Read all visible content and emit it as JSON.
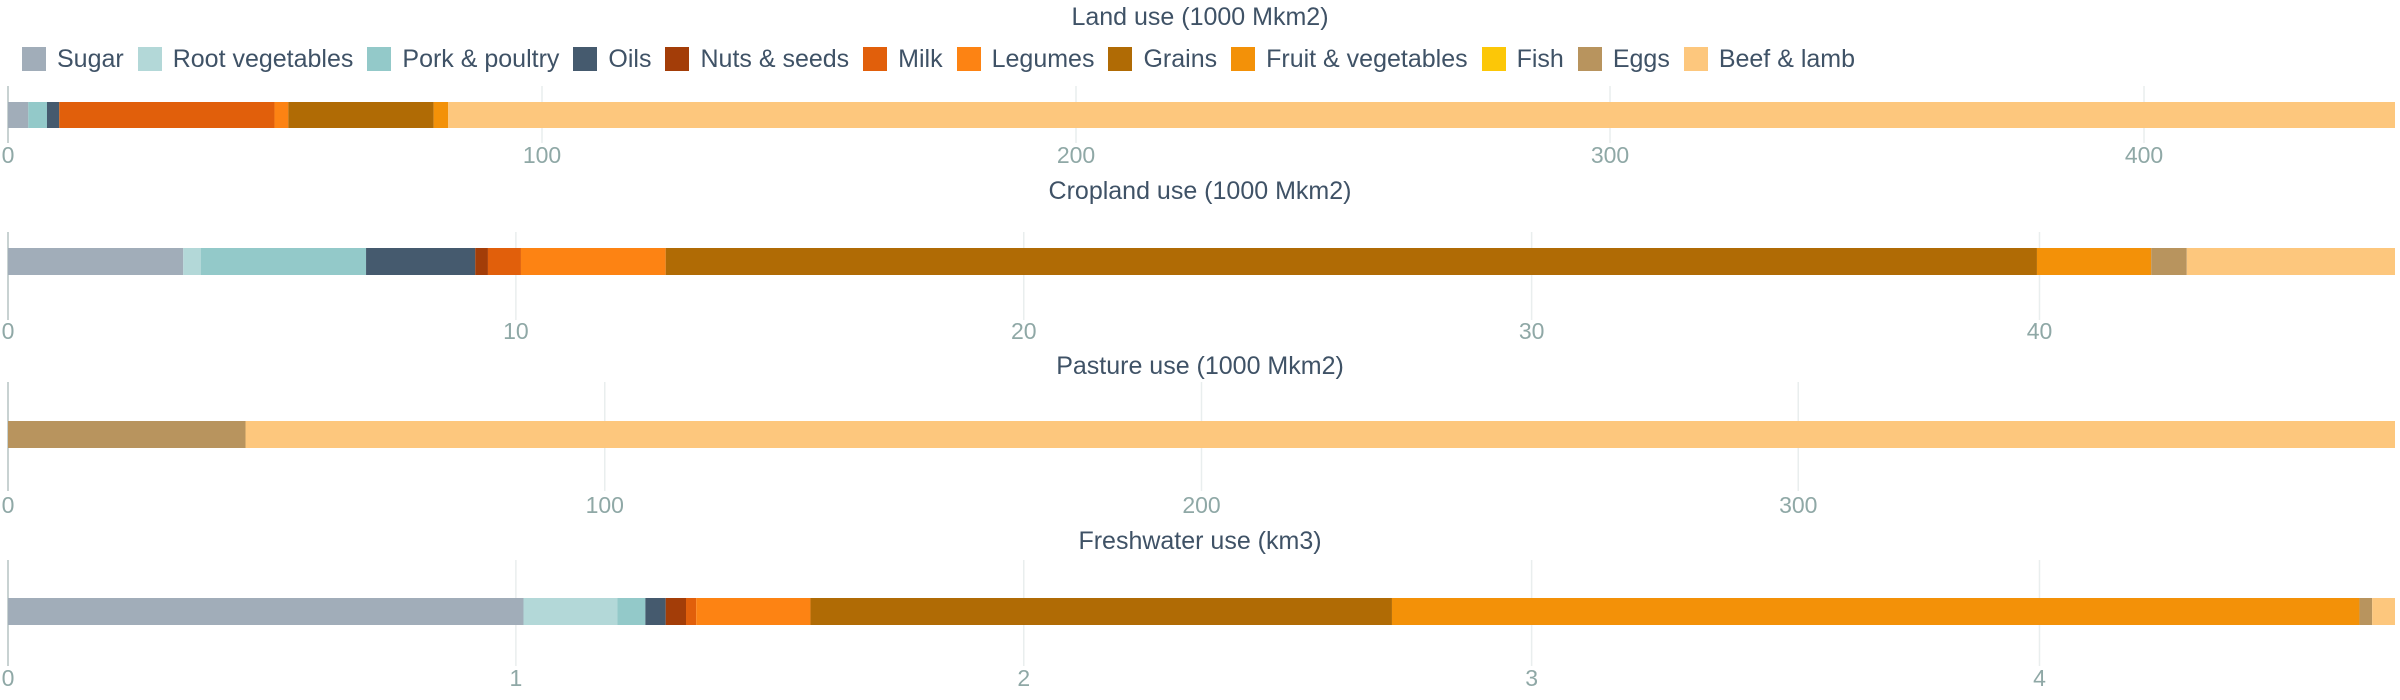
{
  "legend": [
    {
      "label": "Sugar",
      "color": "#a1adb9"
    },
    {
      "label": "Root vegetables",
      "color": "#b3d8d8"
    },
    {
      "label": "Pork & poultry",
      "color": "#93c9c9"
    },
    {
      "label": "Oils",
      "color": "#455a6e"
    },
    {
      "label": "Nuts & seeds",
      "color": "#a33d08"
    },
    {
      "label": "Milk",
      "color": "#e15f0b"
    },
    {
      "label": "Legumes",
      "color": "#fd8313"
    },
    {
      "label": "Grains",
      "color": "#b06b05"
    },
    {
      "label": "Fruit & vegetables",
      "color": "#f39108"
    },
    {
      "label": "Fish",
      "color": "#fcc707"
    },
    {
      "label": "Eggs",
      "color": "#b8945e"
    },
    {
      "label": "Beef & lamb",
      "color": "#fdc77d"
    }
  ],
  "chart_data": [
    {
      "type": "bar",
      "orientation": "horizontal",
      "stacked": true,
      "title": "Land use (1000 Mkm2)",
      "xlim": [
        0,
        447
      ],
      "ticks": [
        0,
        100,
        200,
        300,
        400
      ],
      "segments": [
        {
          "name": "Sugar",
          "value": 3.8
        },
        {
          "name": "Pork & poultry",
          "value": 3.5
        },
        {
          "name": "Oils",
          "value": 2.3
        },
        {
          "name": "Milk",
          "value": 40.3
        },
        {
          "name": "Legumes",
          "value": 2.6
        },
        {
          "name": "Grains",
          "value": 27.2
        },
        {
          "name": "Fruit & vegetables",
          "value": 2.7
        },
        {
          "name": "Beef & lamb",
          "value": 364.6
        }
      ]
    },
    {
      "type": "bar",
      "orientation": "horizontal",
      "stacked": true,
      "title": "Cropland use (1000 Mkm2)",
      "xlim": [
        0,
        47
      ],
      "ticks": [
        0,
        10,
        20,
        30,
        40
      ],
      "segments": [
        {
          "name": "Sugar",
          "value": 3.45
        },
        {
          "name": "Root vegetables",
          "value": 0.35
        },
        {
          "name": "Pork & poultry",
          "value": 3.25
        },
        {
          "name": "Oils",
          "value": 2.15
        },
        {
          "name": "Nuts & seeds",
          "value": 0.25
        },
        {
          "name": "Milk",
          "value": 0.65
        },
        {
          "name": "Legumes",
          "value": 2.85
        },
        {
          "name": "Grains",
          "value": 27.0
        },
        {
          "name": "Fruit & vegetables",
          "value": 2.25
        },
        {
          "name": "Eggs",
          "value": 0.7
        },
        {
          "name": "Beef & lamb",
          "value": 4.1
        }
      ]
    },
    {
      "type": "bar",
      "orientation": "horizontal",
      "stacked": true,
      "title": "Pasture use (1000 Mkm2)",
      "xlim": [
        0,
        400
      ],
      "ticks": [
        0,
        100,
        200,
        300
      ],
      "segments": [
        {
          "name": "Eggs",
          "value": 39.8
        },
        {
          "name": "Beef & lamb",
          "value": 360.2
        }
      ]
    },
    {
      "type": "bar",
      "orientation": "horizontal",
      "stacked": true,
      "title": "Freshwater use (km3)",
      "xlim": [
        0,
        4.7
      ],
      "ticks": [
        0,
        1,
        2,
        3,
        4
      ],
      "segments": [
        {
          "name": "Sugar",
          "value": 1.015
        },
        {
          "name": "Root vegetables",
          "value": 0.185
        },
        {
          "name": "Pork & poultry",
          "value": 0.055
        },
        {
          "name": "Oils",
          "value": 0.04
        },
        {
          "name": "Nuts & seeds",
          "value": 0.04
        },
        {
          "name": "Milk",
          "value": 0.02
        },
        {
          "name": "Legumes",
          "value": 0.225
        },
        {
          "name": "Grains",
          "value": 1.145
        },
        {
          "name": "Fruit & vegetables",
          "value": 1.905
        },
        {
          "name": "Eggs",
          "value": 0.025
        },
        {
          "name": "Beef & lamb",
          "value": 0.045
        }
      ]
    }
  ]
}
